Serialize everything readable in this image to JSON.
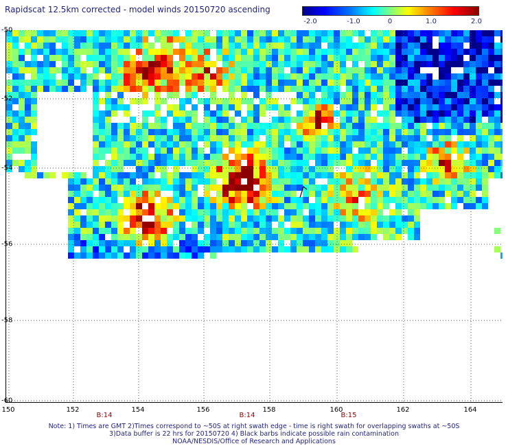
{
  "title": "Rapidscat 12.5km corrected - model winds 20150720 ascending",
  "colorbar": {
    "ticks": [
      "-2.0",
      "-1.0",
      "0",
      "1.0",
      "2.0"
    ],
    "range": [
      -2.0,
      2.0
    ]
  },
  "axes": {
    "y_labels": [
      "-50",
      "-52",
      "-54",
      "-56",
      "-58",
      "-60"
    ],
    "x_labels": [
      "150",
      "152",
      "154",
      "156",
      "158",
      "160",
      "162",
      "164"
    ],
    "time_labels": [
      "B:14",
      "B:14",
      "B:15"
    ],
    "x_range": [
      150,
      165
    ],
    "y_range": [
      -50,
      -60
    ]
  },
  "notes": [
    "Note: 1) Times are GMT 2)Times correspond to ~50S at right swath edge - time is right swath for overlapping swaths at ~50S",
    "3)Data buffer is 22 hrs for 20150720 4) Black barbs indicate possible rain contamination",
    "NOAA/NESDIS/Office of Research and Applications"
  ],
  "colors": {
    "deep_blue": "#00008a",
    "blue": "#0000ff",
    "cyan": "#00ffff",
    "yellow": "#ffff00",
    "orange": "#ff8000",
    "red": "#ff0000",
    "dark_red": "#8b0000"
  },
  "chart_data": {
    "type": "heatmap",
    "title": "Rapidscat 12.5km corrected - model winds 20150720 ascending",
    "xlim": [
      150,
      165
    ],
    "ylim": [
      -60,
      -50
    ],
    "colorbar_range": [
      -2.0,
      2.0
    ],
    "grid": true
  }
}
